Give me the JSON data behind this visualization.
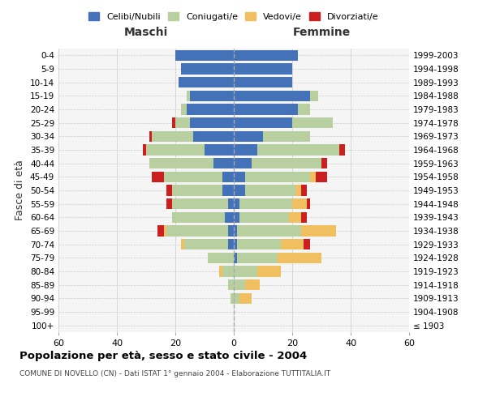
{
  "age_groups": [
    "100+",
    "95-99",
    "90-94",
    "85-89",
    "80-84",
    "75-79",
    "70-74",
    "65-69",
    "60-64",
    "55-59",
    "50-54",
    "45-49",
    "40-44",
    "35-39",
    "30-34",
    "25-29",
    "20-24",
    "15-19",
    "10-14",
    "5-9",
    "0-4"
  ],
  "birth_years": [
    "≤ 1903",
    "1904-1908",
    "1909-1913",
    "1914-1918",
    "1919-1923",
    "1924-1928",
    "1929-1933",
    "1934-1938",
    "1939-1943",
    "1944-1948",
    "1949-1953",
    "1954-1958",
    "1959-1963",
    "1964-1968",
    "1969-1973",
    "1974-1978",
    "1979-1983",
    "1984-1988",
    "1989-1993",
    "1994-1998",
    "1999-2003"
  ],
  "colors": {
    "celibi": "#4472b8",
    "coniugati": "#b8cfa0",
    "vedovi": "#f0c060",
    "divorziati": "#cc2020"
  },
  "maschi": {
    "celibi": [
      0,
      0,
      0,
      0,
      0,
      0,
      2,
      2,
      3,
      2,
      4,
      4,
      7,
      10,
      14,
      15,
      16,
      15,
      19,
      18,
      20
    ],
    "coniugati": [
      0,
      0,
      1,
      2,
      4,
      9,
      15,
      21,
      18,
      19,
      17,
      20,
      22,
      20,
      14,
      5,
      2,
      1,
      0,
      0,
      0
    ],
    "vedovi": [
      0,
      0,
      0,
      0,
      1,
      0,
      1,
      1,
      0,
      0,
      0,
      0,
      0,
      0,
      0,
      0,
      0,
      0,
      0,
      0,
      0
    ],
    "divorziati": [
      0,
      0,
      0,
      0,
      0,
      0,
      0,
      2,
      0,
      2,
      2,
      4,
      0,
      1,
      1,
      1,
      0,
      0,
      0,
      0,
      0
    ]
  },
  "femmine": {
    "celibi": [
      0,
      0,
      0,
      0,
      0,
      1,
      1,
      1,
      2,
      2,
      4,
      4,
      6,
      8,
      10,
      20,
      22,
      26,
      20,
      20,
      22
    ],
    "coniugati": [
      0,
      0,
      2,
      4,
      8,
      14,
      15,
      22,
      17,
      18,
      17,
      22,
      24,
      28,
      16,
      14,
      4,
      3,
      0,
      0,
      0
    ],
    "vedovi": [
      0,
      0,
      4,
      5,
      8,
      15,
      8,
      12,
      4,
      5,
      2,
      2,
      0,
      0,
      0,
      0,
      0,
      0,
      0,
      0,
      0
    ],
    "divorziati": [
      0,
      0,
      0,
      0,
      0,
      0,
      2,
      0,
      2,
      1,
      2,
      4,
      2,
      2,
      0,
      0,
      0,
      0,
      0,
      0,
      0
    ]
  },
  "xlim": 60,
  "title": "Popolazione per età, sesso e stato civile - 2004",
  "subtitle": "COMUNE DI NOVELLO (CN) - Dati ISTAT 1° gennaio 2004 - Elaborazione TUTTITALIA.IT",
  "ylabel_left": "Fasce di età",
  "xlabel_maschi": "Maschi",
  "xlabel_femmine": "Femmine",
  "legend_labels": [
    "Celibi/Nubili",
    "Coniugati/e",
    "Vedovi/e",
    "Divorziati/e"
  ],
  "bar_height": 0.8
}
